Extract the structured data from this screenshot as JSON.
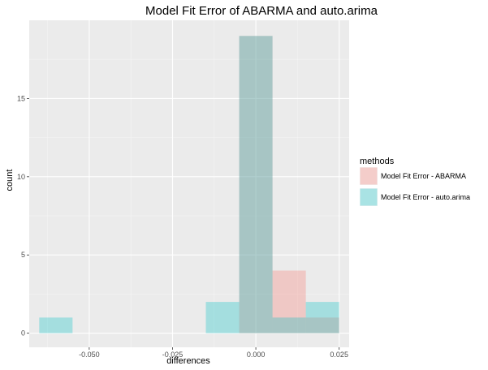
{
  "chart_data": {
    "type": "histogram",
    "title": "Model Fit Error of ABARMA and auto.arima",
    "xlabel": "differences",
    "ylabel": "count",
    "xlim": [
      -0.068,
      0.028
    ],
    "ylim": [
      -0.9,
      20
    ],
    "x_ticks": [
      {
        "value": -0.05,
        "label": "-0.050"
      },
      {
        "value": -0.025,
        "label": "-0.025"
      },
      {
        "value": 0.0,
        "label": "0.000"
      },
      {
        "value": 0.025,
        "label": "0.025"
      }
    ],
    "y_ticks": [
      {
        "value": 0,
        "label": "0"
      },
      {
        "value": 5,
        "label": "5"
      },
      {
        "value": 10,
        "label": "10"
      },
      {
        "value": 15,
        "label": "15"
      }
    ],
    "legend": {
      "title": "methods",
      "position": "right"
    },
    "series": [
      {
        "name": "Model Fit Error - ABARMA",
        "color": "#F8766D",
        "bins": [
          {
            "x0": -0.005,
            "x1": 0.005,
            "count": 19
          },
          {
            "x0": 0.005,
            "x1": 0.015,
            "count": 4
          },
          {
            "x0": 0.015,
            "x1": 0.025,
            "count": 1
          }
        ]
      },
      {
        "name": "Model Fit Error - auto.arima",
        "color": "#00BFC4",
        "bins": [
          {
            "x0": -0.065,
            "x1": -0.055,
            "count": 1
          },
          {
            "x0": -0.015,
            "x1": -0.005,
            "count": 2
          },
          {
            "x0": -0.005,
            "x1": 0.005,
            "count": 19
          },
          {
            "x0": 0.005,
            "x1": 0.015,
            "count": 1
          },
          {
            "x0": 0.015,
            "x1": 0.025,
            "count": 2
          }
        ]
      }
    ],
    "grid": true,
    "panel_background": "#EBEBEB"
  }
}
